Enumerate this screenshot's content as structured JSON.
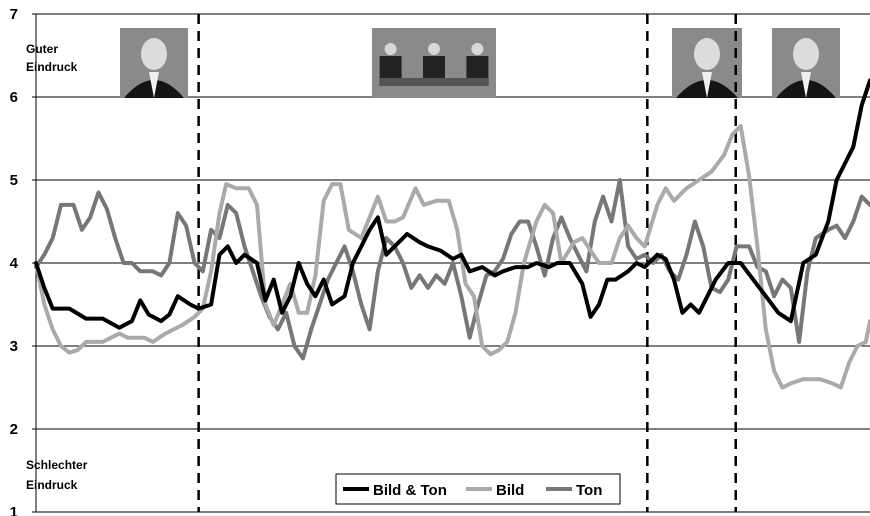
{
  "chart_data": {
    "type": "line",
    "title": "",
    "xlabel": "",
    "ylabel": "",
    "ylim": [
      1,
      7
    ],
    "yticks": [
      "1",
      "2",
      "3",
      "4",
      "5",
      "6",
      "7"
    ],
    "grid": "horizontal",
    "legend_position": "bottom-center",
    "annotations": {
      "top": "Guter Eindruck",
      "bottom": "Schlechter Eindruck"
    },
    "images": [
      {
        "name": "portrait-photo-1"
      },
      {
        "name": "studio-debate-photo"
      },
      {
        "name": "portrait-photo-2"
      },
      {
        "name": "portrait-photo-3"
      }
    ],
    "segment_boundaries_relative": [
      0.195,
      0.733,
      0.839
    ],
    "series": [
      {
        "name": "Bild & Ton",
        "color": "#000000",
        "values": [
          [
            0.0,
            4.0
          ],
          [
            0.01,
            3.7
          ],
          [
            0.02,
            3.45
          ],
          [
            0.04,
            3.45
          ],
          [
            0.06,
            3.33
          ],
          [
            0.08,
            3.33
          ],
          [
            0.1,
            3.22
          ],
          [
            0.115,
            3.3
          ],
          [
            0.125,
            3.55
          ],
          [
            0.135,
            3.38
          ],
          [
            0.15,
            3.3
          ],
          [
            0.16,
            3.38
          ],
          [
            0.17,
            3.6
          ],
          [
            0.185,
            3.5
          ],
          [
            0.195,
            3.45
          ],
          [
            0.21,
            3.5
          ],
          [
            0.22,
            4.1
          ],
          [
            0.23,
            4.2
          ],
          [
            0.24,
            4.0
          ],
          [
            0.25,
            4.1
          ],
          [
            0.265,
            4.0
          ],
          [
            0.275,
            3.55
          ],
          [
            0.285,
            3.8
          ],
          [
            0.295,
            3.4
          ],
          [
            0.305,
            3.6
          ],
          [
            0.315,
            4.0
          ],
          [
            0.325,
            3.75
          ],
          [
            0.335,
            3.6
          ],
          [
            0.345,
            3.8
          ],
          [
            0.355,
            3.5
          ],
          [
            0.37,
            3.6
          ],
          [
            0.38,
            4.0
          ],
          [
            0.39,
            4.2
          ],
          [
            0.4,
            4.4
          ],
          [
            0.41,
            4.55
          ],
          [
            0.42,
            4.1
          ],
          [
            0.43,
            4.2
          ],
          [
            0.445,
            4.35
          ],
          [
            0.46,
            4.25
          ],
          [
            0.47,
            4.2
          ],
          [
            0.485,
            4.15
          ],
          [
            0.5,
            4.05
          ],
          [
            0.51,
            4.1
          ],
          [
            0.52,
            3.9
          ],
          [
            0.535,
            3.95
          ],
          [
            0.55,
            3.85
          ],
          [
            0.56,
            3.9
          ],
          [
            0.575,
            3.95
          ],
          [
            0.59,
            3.95
          ],
          [
            0.6,
            4.0
          ],
          [
            0.615,
            3.95
          ],
          [
            0.625,
            4.0
          ],
          [
            0.64,
            4.0
          ],
          [
            0.655,
            3.75
          ],
          [
            0.665,
            3.35
          ],
          [
            0.675,
            3.5
          ],
          [
            0.685,
            3.8
          ],
          [
            0.695,
            3.8
          ],
          [
            0.71,
            3.9
          ],
          [
            0.72,
            4.0
          ],
          [
            0.73,
            3.95
          ],
          [
            0.745,
            4.1
          ],
          [
            0.755,
            4.05
          ],
          [
            0.765,
            3.8
          ],
          [
            0.775,
            3.4
          ],
          [
            0.785,
            3.5
          ],
          [
            0.795,
            3.4
          ],
          [
            0.805,
            3.6
          ],
          [
            0.815,
            3.8
          ],
          [
            0.83,
            4.0
          ],
          [
            0.845,
            4.0
          ],
          [
            0.86,
            3.8
          ],
          [
            0.875,
            3.6
          ],
          [
            0.89,
            3.4
          ],
          [
            0.905,
            3.3
          ],
          [
            0.92,
            4.0
          ],
          [
            0.935,
            4.1
          ],
          [
            0.95,
            4.5
          ],
          [
            0.96,
            5.0
          ],
          [
            0.97,
            5.2
          ],
          [
            0.98,
            5.4
          ],
          [
            0.99,
            5.9
          ],
          [
            1.0,
            6.2
          ]
        ]
      },
      {
        "name": "Bild",
        "color": "#aaaaaa",
        "values": [
          [
            0.0,
            4.0
          ],
          [
            0.01,
            3.5
          ],
          [
            0.02,
            3.2
          ],
          [
            0.03,
            3.0
          ],
          [
            0.04,
            2.92
          ],
          [
            0.05,
            2.95
          ],
          [
            0.06,
            3.05
          ],
          [
            0.08,
            3.05
          ],
          [
            0.09,
            3.1
          ],
          [
            0.1,
            3.15
          ],
          [
            0.11,
            3.1
          ],
          [
            0.13,
            3.1
          ],
          [
            0.14,
            3.05
          ],
          [
            0.155,
            3.15
          ],
          [
            0.165,
            3.2
          ],
          [
            0.175,
            3.25
          ],
          [
            0.19,
            3.35
          ],
          [
            0.2,
            3.45
          ],
          [
            0.21,
            3.9
          ],
          [
            0.22,
            4.6
          ],
          [
            0.228,
            4.95
          ],
          [
            0.24,
            4.9
          ],
          [
            0.255,
            4.9
          ],
          [
            0.265,
            4.7
          ],
          [
            0.275,
            3.5
          ],
          [
            0.285,
            3.25
          ],
          [
            0.295,
            3.5
          ],
          [
            0.305,
            3.75
          ],
          [
            0.315,
            3.4
          ],
          [
            0.325,
            3.4
          ],
          [
            0.335,
            3.85
          ],
          [
            0.345,
            4.75
          ],
          [
            0.355,
            4.95
          ],
          [
            0.365,
            4.95
          ],
          [
            0.375,
            4.4
          ],
          [
            0.39,
            4.3
          ],
          [
            0.4,
            4.55
          ],
          [
            0.41,
            4.8
          ],
          [
            0.42,
            4.5
          ],
          [
            0.43,
            4.5
          ],
          [
            0.44,
            4.55
          ],
          [
            0.455,
            4.9
          ],
          [
            0.465,
            4.7
          ],
          [
            0.48,
            4.75
          ],
          [
            0.495,
            4.75
          ],
          [
            0.505,
            4.4
          ],
          [
            0.515,
            3.75
          ],
          [
            0.525,
            3.6
          ],
          [
            0.535,
            3.0
          ],
          [
            0.545,
            2.9
          ],
          [
            0.555,
            2.95
          ],
          [
            0.565,
            3.05
          ],
          [
            0.575,
            3.4
          ],
          [
            0.585,
            4.0
          ],
          [
            0.6,
            4.5
          ],
          [
            0.61,
            4.7
          ],
          [
            0.62,
            4.6
          ],
          [
            0.63,
            4.0
          ],
          [
            0.645,
            4.25
          ],
          [
            0.655,
            4.3
          ],
          [
            0.665,
            4.15
          ],
          [
            0.675,
            4.0
          ],
          [
            0.69,
            4.0
          ],
          [
            0.7,
            4.3
          ],
          [
            0.71,
            4.45
          ],
          [
            0.72,
            4.3
          ],
          [
            0.73,
            4.2
          ],
          [
            0.745,
            4.7
          ],
          [
            0.755,
            4.9
          ],
          [
            0.765,
            4.75
          ],
          [
            0.78,
            4.9
          ],
          [
            0.795,
            5.0
          ],
          [
            0.81,
            5.1
          ],
          [
            0.825,
            5.3
          ],
          [
            0.835,
            5.55
          ],
          [
            0.845,
            5.65
          ],
          [
            0.855,
            5.05
          ],
          [
            0.865,
            4.2
          ],
          [
            0.875,
            3.2
          ],
          [
            0.885,
            2.7
          ],
          [
            0.895,
            2.5
          ],
          [
            0.905,
            2.55
          ],
          [
            0.92,
            2.6
          ],
          [
            0.94,
            2.6
          ],
          [
            0.955,
            2.55
          ],
          [
            0.965,
            2.5
          ],
          [
            0.975,
            2.8
          ],
          [
            0.985,
            3.0
          ],
          [
            0.995,
            3.05
          ],
          [
            1.0,
            3.3
          ]
        ]
      },
      {
        "name": "Ton",
        "color": "#777777",
        "values": [
          [
            0.0,
            3.95
          ],
          [
            0.01,
            4.1
          ],
          [
            0.02,
            4.3
          ],
          [
            0.03,
            4.7
          ],
          [
            0.045,
            4.7
          ],
          [
            0.055,
            4.4
          ],
          [
            0.065,
            4.55
          ],
          [
            0.075,
            4.85
          ],
          [
            0.085,
            4.65
          ],
          [
            0.095,
            4.3
          ],
          [
            0.105,
            4.0
          ],
          [
            0.115,
            4.0
          ],
          [
            0.125,
            3.9
          ],
          [
            0.14,
            3.9
          ],
          [
            0.15,
            3.85
          ],
          [
            0.16,
            4.0
          ],
          [
            0.17,
            4.6
          ],
          [
            0.18,
            4.45
          ],
          [
            0.19,
            4.0
          ],
          [
            0.2,
            3.9
          ],
          [
            0.21,
            4.4
          ],
          [
            0.22,
            4.3
          ],
          [
            0.23,
            4.7
          ],
          [
            0.24,
            4.6
          ],
          [
            0.25,
            4.2
          ],
          [
            0.26,
            3.9
          ],
          [
            0.27,
            3.6
          ],
          [
            0.28,
            3.35
          ],
          [
            0.29,
            3.2
          ],
          [
            0.3,
            3.4
          ],
          [
            0.31,
            3.0
          ],
          [
            0.32,
            2.85
          ],
          [
            0.33,
            3.2
          ],
          [
            0.34,
            3.5
          ],
          [
            0.35,
            3.8
          ],
          [
            0.36,
            4.0
          ],
          [
            0.37,
            4.2
          ],
          [
            0.38,
            3.9
          ],
          [
            0.39,
            3.5
          ],
          [
            0.4,
            3.2
          ],
          [
            0.41,
            3.9
          ],
          [
            0.42,
            4.3
          ],
          [
            0.43,
            4.2
          ],
          [
            0.44,
            4.0
          ],
          [
            0.45,
            3.7
          ],
          [
            0.46,
            3.85
          ],
          [
            0.47,
            3.7
          ],
          [
            0.48,
            3.85
          ],
          [
            0.49,
            3.75
          ],
          [
            0.5,
            4.0
          ],
          [
            0.51,
            3.6
          ],
          [
            0.52,
            3.1
          ],
          [
            0.53,
            3.5
          ],
          [
            0.54,
            3.85
          ],
          [
            0.55,
            3.9
          ],
          [
            0.56,
            4.05
          ],
          [
            0.57,
            4.35
          ],
          [
            0.58,
            4.5
          ],
          [
            0.59,
            4.5
          ],
          [
            0.6,
            4.2
          ],
          [
            0.61,
            3.85
          ],
          [
            0.62,
            4.3
          ],
          [
            0.63,
            4.55
          ],
          [
            0.64,
            4.3
          ],
          [
            0.65,
            4.1
          ],
          [
            0.66,
            3.9
          ],
          [
            0.67,
            4.5
          ],
          [
            0.68,
            4.8
          ],
          [
            0.69,
            4.5
          ],
          [
            0.7,
            5.0
          ],
          [
            0.71,
            4.2
          ],
          [
            0.72,
            4.05
          ],
          [
            0.73,
            4.1
          ],
          [
            0.74,
            4.0
          ],
          [
            0.75,
            4.1
          ],
          [
            0.76,
            3.9
          ],
          [
            0.77,
            3.8
          ],
          [
            0.78,
            4.1
          ],
          [
            0.79,
            4.5
          ],
          [
            0.8,
            4.2
          ],
          [
            0.81,
            3.7
          ],
          [
            0.82,
            3.65
          ],
          [
            0.83,
            3.8
          ],
          [
            0.84,
            4.2
          ],
          [
            0.855,
            4.2
          ],
          [
            0.865,
            3.95
          ],
          [
            0.875,
            3.9
          ],
          [
            0.885,
            3.6
          ],
          [
            0.895,
            3.8
          ],
          [
            0.905,
            3.7
          ],
          [
            0.915,
            3.05
          ],
          [
            0.925,
            3.9
          ],
          [
            0.935,
            4.3
          ],
          [
            0.95,
            4.4
          ],
          [
            0.96,
            4.45
          ],
          [
            0.97,
            4.3
          ],
          [
            0.98,
            4.5
          ],
          [
            0.99,
            4.8
          ],
          [
            1.0,
            4.7
          ]
        ]
      }
    ]
  }
}
